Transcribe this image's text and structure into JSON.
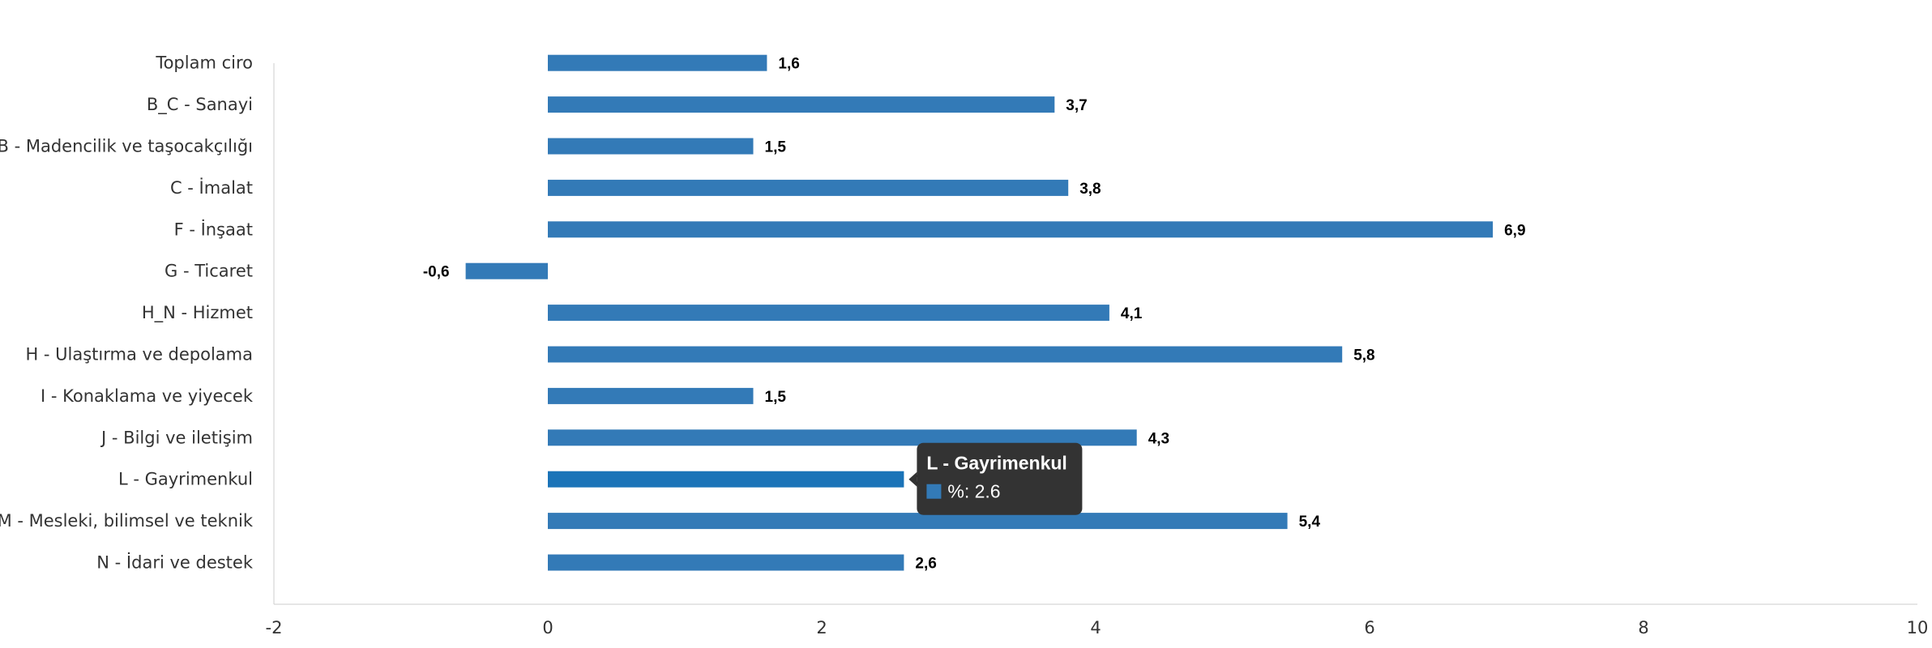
{
  "colors": {
    "bar": "#337ab7",
    "bar_highlight": "#1a73b8",
    "axis": "#cccccc",
    "tooltip_bg": "#333333"
  },
  "chart_data": {
    "type": "bar",
    "orientation": "horizontal",
    "categories": [
      "Toplam ciro",
      "B_C - Sanayi",
      "B - Madencilik ve taşocakçılığı",
      "C - İmalat",
      "F - İnşaat",
      "G - Ticaret",
      "H_N - Hizmet",
      "H - Ulaştırma ve depolama",
      "I - Konaklama ve yiyecek",
      "J - Bilgi ve iletişim",
      "L - Gayrimenkul",
      "M - Mesleki, bilimsel ve teknik",
      "N - İdari ve destek"
    ],
    "series": [
      {
        "name": "%",
        "values": [
          1.6,
          3.7,
          1.5,
          3.8,
          6.9,
          -0.6,
          4.1,
          5.8,
          1.5,
          4.3,
          2.6,
          5.4,
          2.6
        ]
      }
    ],
    "data_labels": [
      "1,6",
      "3,7",
      "1,5",
      "3,8",
      "6,9",
      "-0,6",
      "4,1",
      "5,8",
      "1,5",
      "4,3",
      "2,6",
      "5,4",
      "2,6"
    ],
    "xlim": [
      -2,
      10
    ],
    "x_ticks": [
      -2,
      0,
      2,
      4,
      6,
      8,
      10
    ],
    "x_tick_labels": [
      "-2",
      "0",
      "2",
      "4",
      "6",
      "8",
      "10"
    ],
    "grid": false,
    "legend": "none"
  },
  "tooltip": {
    "title": "L - Gayrimenkul",
    "text": "%: 2.6",
    "category_index": 10
  }
}
